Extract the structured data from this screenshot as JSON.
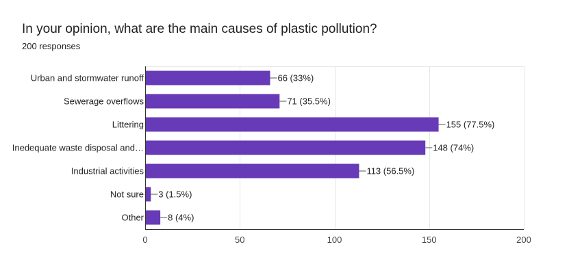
{
  "form": {
    "question": "In your opinion, what are the main causes of plastic pollution?",
    "responses_label": "200 responses"
  },
  "colors": {
    "bar": "#673ab7",
    "grid": "#e6e6e6",
    "axis": "#333333"
  },
  "chart_data": {
    "type": "bar",
    "orientation": "horizontal",
    "title": "In your opinion, what are the main causes of plastic pollution?",
    "subtitle": "200 responses",
    "categories": [
      "Urban and stormwater runoff",
      "Sewerage overflows",
      "Littering",
      "Inedequate waste disposal and…",
      "Industrial activities",
      "Not sure",
      "Other"
    ],
    "values": [
      66,
      71,
      155,
      148,
      113,
      3,
      8
    ],
    "data_labels": [
      "66 (33%)",
      "71 (35.5%)",
      "155 (77.5%)",
      "148 (74%)",
      "113 (56.5%)",
      "3 (1.5%)",
      "8 (4%)"
    ],
    "xlim": [
      0,
      200
    ],
    "xticks": [
      0,
      50,
      100,
      150,
      200
    ],
    "xtick_labels": [
      "0",
      "50",
      "100",
      "150",
      "200"
    ],
    "grid": true,
    "legend": "none"
  }
}
